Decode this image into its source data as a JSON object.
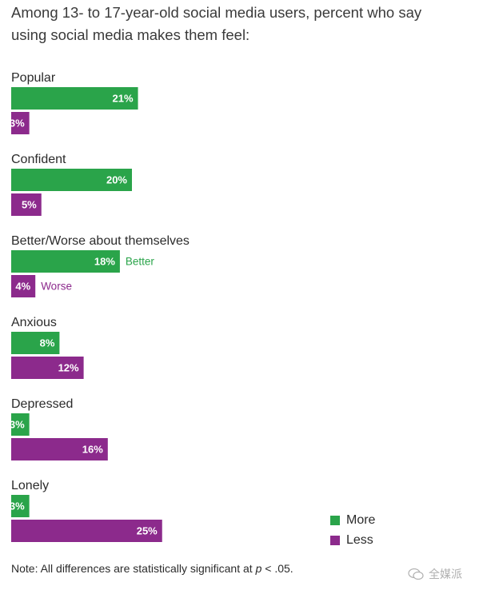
{
  "title": "Among 13- to 17-year-old social media users, percent who say using social media makes them feel:",
  "colors": {
    "more": "#2aa44a",
    "less": "#8c2a8c"
  },
  "chart_data": {
    "type": "bar",
    "orientation": "horizontal",
    "categories": [
      "Popular",
      "Confident",
      "Better/Worse about themselves",
      "Anxious",
      "Depressed",
      "Lonely"
    ],
    "series": [
      {
        "name": "More",
        "values": [
          21,
          20,
          18,
          8,
          3,
          3
        ]
      },
      {
        "name": "Less",
        "values": [
          3,
          5,
          4,
          12,
          16,
          25
        ]
      }
    ],
    "value_suffix": "%",
    "annotations": [
      {
        "category": "Better/Worse about themselves",
        "series": "More",
        "text": "Better"
      },
      {
        "category": "Better/Worse about themselves",
        "series": "Less",
        "text": "Worse"
      }
    ],
    "legend_position": "bottom-right",
    "grid": false
  },
  "legend": [
    {
      "label": "More",
      "color": "#2aa44a"
    },
    {
      "label": "Less",
      "color": "#8c2a8c"
    }
  ],
  "note": {
    "prefix": "Note: All differences are statistically significant at ",
    "italic": "p",
    "suffix": " < .05."
  },
  "watermark": "全媒派"
}
